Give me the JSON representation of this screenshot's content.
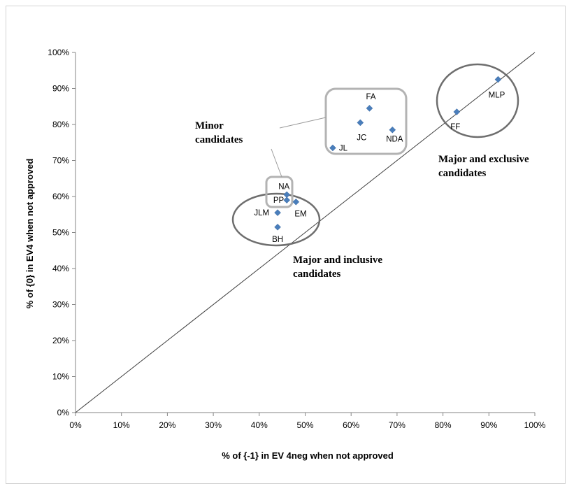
{
  "chart_data": {
    "type": "scatter",
    "title": "",
    "xlabel": "% of {-1} in EV 4neg   when not approved",
    "ylabel": "% of {0} in EV4 when not approved",
    "xlim": [
      0,
      100
    ],
    "ylim": [
      0,
      100
    ],
    "x_ticks": [
      "0%",
      "10%",
      "20%",
      "30%",
      "40%",
      "50%",
      "60%",
      "70%",
      "80%",
      "90%",
      "100%"
    ],
    "y_ticks": [
      "0%",
      "10%",
      "20%",
      "30%",
      "40%",
      "50%",
      "60%",
      "70%",
      "80%",
      "90%",
      "100%"
    ],
    "grid": false,
    "legend": "none",
    "marker_color": "#4a7ebb",
    "reference_line": {
      "from": [
        0,
        0
      ],
      "to": [
        100,
        100
      ]
    },
    "points": [
      {
        "label": "MLP",
        "x": 92,
        "y": 92.5
      },
      {
        "label": "FF",
        "x": 83,
        "y": 83.5
      },
      {
        "label": "FA",
        "x": 64,
        "y": 84.5
      },
      {
        "label": "JC",
        "x": 62,
        "y": 80.5
      },
      {
        "label": "NDA",
        "x": 69,
        "y": 78.5
      },
      {
        "label": "JL",
        "x": 56,
        "y": 73.5
      },
      {
        "label": "NA",
        "x": 46,
        "y": 60.5
      },
      {
        "label": "PP",
        "x": 46,
        "y": 59
      },
      {
        "label": "EM",
        "x": 48,
        "y": 58.5
      },
      {
        "label": "JLM",
        "x": 44,
        "y": 55.5
      },
      {
        "label": "BH",
        "x": 44,
        "y": 51.5
      }
    ],
    "annotations": [
      {
        "id": "minor",
        "lines": [
          "Minor",
          "candidates"
        ]
      },
      {
        "id": "exclusive",
        "lines": [
          "Major  and exclusive",
          "candidates"
        ]
      },
      {
        "id": "inclusive",
        "lines": [
          "Major  and inclusive",
          "candidates"
        ]
      }
    ]
  }
}
